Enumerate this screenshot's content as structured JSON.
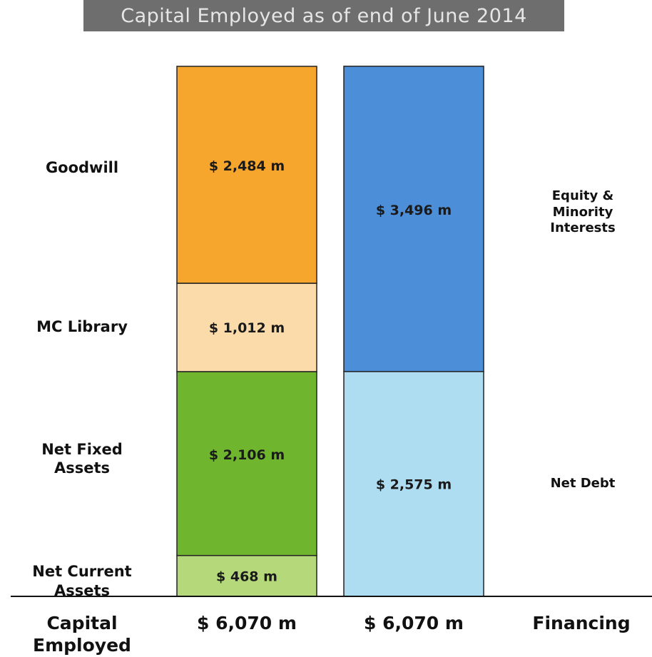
{
  "title": "Capital Employed as of end of June 2014",
  "chart_data": {
    "type": "bar",
    "stacked": true,
    "unit": "$ m",
    "total": 6070,
    "columns": [
      {
        "name": "Capital Employed",
        "total_label": "$ 6,070 m",
        "segments": [
          {
            "name": "Net Current Assets",
            "label_lines": [
              "Net Current",
              "Assets"
            ],
            "value": 468,
            "value_label": "$ 468 m",
            "color": "#b5d97a"
          },
          {
            "name": "Net Fixed Assets",
            "label_lines": [
              "Net Fixed",
              "Assets"
            ],
            "value": 2106,
            "value_label": "$ 2,106 m",
            "color": "#6fb52e"
          },
          {
            "name": "MC Library",
            "label_lines": [
              "MC Library"
            ],
            "value": 1012,
            "value_label": "$ 1,012 m",
            "color": "#fbdbaa"
          },
          {
            "name": "Goodwill",
            "label_lines": [
              "Goodwill"
            ],
            "value": 2484,
            "value_label": "$ 2,484 m",
            "color": "#f6a52d"
          }
        ]
      },
      {
        "name": "Financing",
        "total_label": "$ 6,070 m",
        "segments": [
          {
            "name": "Net Debt",
            "label_lines": [
              "Net Debt"
            ],
            "value": 2575,
            "value_label": "$ 2,575 m",
            "color": "#aedcf1"
          },
          {
            "name": "Equity & Minority Interests",
            "label_lines": [
              "Equity &",
              "Minority",
              "Interests"
            ],
            "value": 3496,
            "value_label": "$ 3,496 m",
            "color": "#4c8fd8"
          }
        ]
      }
    ]
  },
  "footer": {
    "left_label_line1": "Capital",
    "left_label_line2": "Employed",
    "col1_total": "$ 6,070 m",
    "col2_total": "$ 6,070 m",
    "right_label": "Financing"
  }
}
